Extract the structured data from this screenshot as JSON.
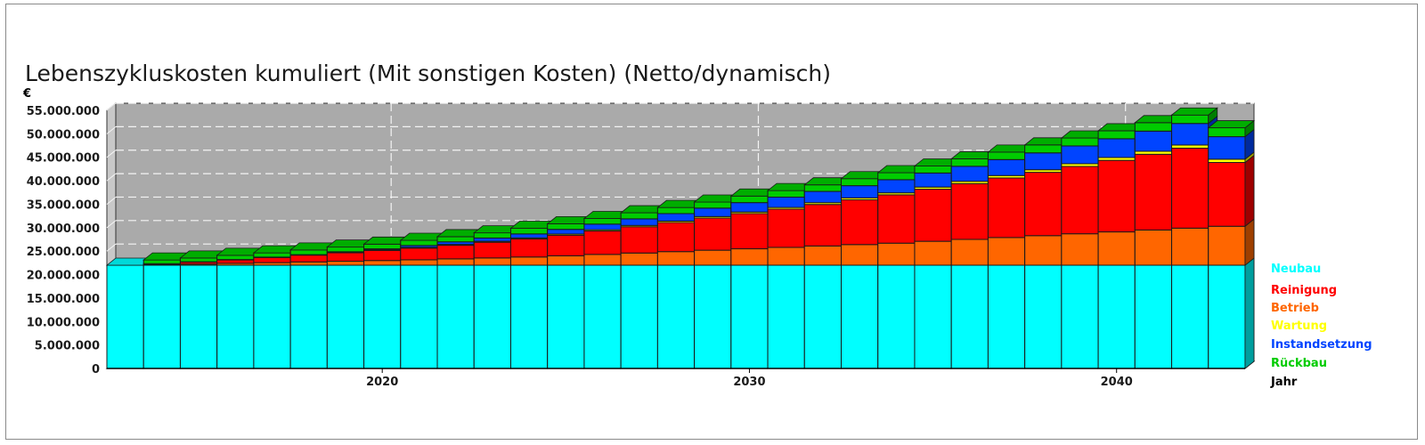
{
  "chart_data": {
    "type": "bar",
    "stacked": true,
    "title": "Lebenszykluskosten kumuliert (Mit sonstigen Kosten) (Netto/dynamisch)",
    "ylabel": "€",
    "xlabel": "Jahr",
    "ylim": [
      0,
      55000000
    ],
    "yticks": [
      "0",
      "5.000.000",
      "10.000.000",
      "15.000.000",
      "20.000.000",
      "25.000.000",
      "30.000.000",
      "35.000.000",
      "40.000.000",
      "45.000.000",
      "50.000.000",
      "55.000.000"
    ],
    "ytick_values": [
      0,
      5000000,
      10000000,
      15000000,
      20000000,
      25000000,
      30000000,
      35000000,
      40000000,
      45000000,
      50000000,
      55000000
    ],
    "xtick_labels": [
      {
        "year": 2020,
        "label": "2020"
      },
      {
        "year": 2030,
        "label": "2030"
      },
      {
        "year": 2040,
        "label": "2040"
      }
    ],
    "grid": true,
    "legend_position": "right",
    "categories": [
      2013,
      2014,
      2015,
      2016,
      2017,
      2018,
      2019,
      2020,
      2021,
      2022,
      2023,
      2024,
      2025,
      2026,
      2027,
      2028,
      2029,
      2030,
      2031,
      2032,
      2033,
      2034,
      2035,
      2036,
      2037,
      2038,
      2039,
      2040,
      2041,
      2042,
      2043
    ],
    "series": [
      {
        "name": "Neubau",
        "color": "#00ffff",
        "values": [
          22000000,
          22000000,
          22000000,
          22000000,
          22000000,
          22000000,
          22000000,
          22000000,
          22000000,
          22000000,
          22000000,
          22000000,
          22000000,
          22000000,
          22000000,
          22000000,
          22000000,
          22000000,
          22000000,
          22000000,
          22000000,
          22000000,
          22000000,
          22000000,
          22000000,
          22000000,
          22000000,
          22000000,
          22000000,
          22000000,
          22000000
        ]
      },
      {
        "name": "Betrieb",
        "color": "#ff6600",
        "values": [
          0,
          100000,
          250000,
          400000,
          550000,
          700000,
          850000,
          1000000,
          1150000,
          1350000,
          1550000,
          1750000,
          2000000,
          2300000,
          2600000,
          2900000,
          3200000,
          3500000,
          3800000,
          4100000,
          4400000,
          4700000,
          5100000,
          5500000,
          5900000,
          6300000,
          6700000,
          7100000,
          7500000,
          7900000,
          8300000
        ]
      },
      {
        "name": "Reinigung",
        "color": "#ff0000",
        "values": [
          0,
          200000,
          450000,
          750000,
          1100000,
          1450000,
          1800000,
          2150000,
          2500000,
          2900000,
          3350000,
          3850000,
          4400000,
          5000000,
          5600000,
          6200000,
          6850000,
          7500000,
          8150000,
          8850000,
          9550000,
          10300000,
          11100000,
          11900000,
          12700000,
          13500000,
          14350000,
          15250000,
          16150000,
          17050000,
          13600000
        ]
      },
      {
        "name": "Wartung",
        "color": "#ffff00",
        "values": [
          0,
          20000,
          40000,
          60000,
          80000,
          100000,
          120000,
          140000,
          160000,
          180000,
          200000,
          220000,
          240000,
          260000,
          280000,
          300000,
          320000,
          340000,
          360000,
          380000,
          400000,
          420000,
          450000,
          480000,
          510000,
          540000,
          570000,
          600000,
          630000,
          660000,
          690000
        ]
      },
      {
        "name": "Instandsetzung",
        "color": "#0044ff",
        "values": [
          0,
          0,
          0,
          0,
          0,
          0,
          100000,
          200000,
          400000,
          550000,
          700000,
          850000,
          1000000,
          1200000,
          1400000,
          1600000,
          1800000,
          2000000,
          2200000,
          2400000,
          2600000,
          2800000,
          3000000,
          3200000,
          3400000,
          3600000,
          3800000,
          4000000,
          4300000,
          4600000,
          4800000
        ]
      },
      {
        "name": "Rückbau",
        "color": "#00cc00",
        "values": [
          0,
          800000,
          800000,
          900000,
          900000,
          1000000,
          1000000,
          1000000,
          1100000,
          1100000,
          1100000,
          1200000,
          1200000,
          1200000,
          1300000,
          1300000,
          1300000,
          1400000,
          1400000,
          1400000,
          1500000,
          1500000,
          1500000,
          1600000,
          1600000,
          1700000,
          1700000,
          1700000,
          1800000,
          1800000,
          1900000
        ]
      }
    ],
    "legend": [
      {
        "label": "Neubau",
        "color": "#00ffff"
      },
      {
        "label": "Reinigung",
        "color": "#ff0000"
      },
      {
        "label": "Betrieb",
        "color": "#ff6600"
      },
      {
        "label": "Wartung",
        "color": "#ffff00"
      },
      {
        "label": "Instandsetzung",
        "color": "#0044ff"
      },
      {
        "label": "Rückbau",
        "color": "#00cc00"
      },
      {
        "label": "Jahr",
        "color": "#000000"
      }
    ]
  }
}
